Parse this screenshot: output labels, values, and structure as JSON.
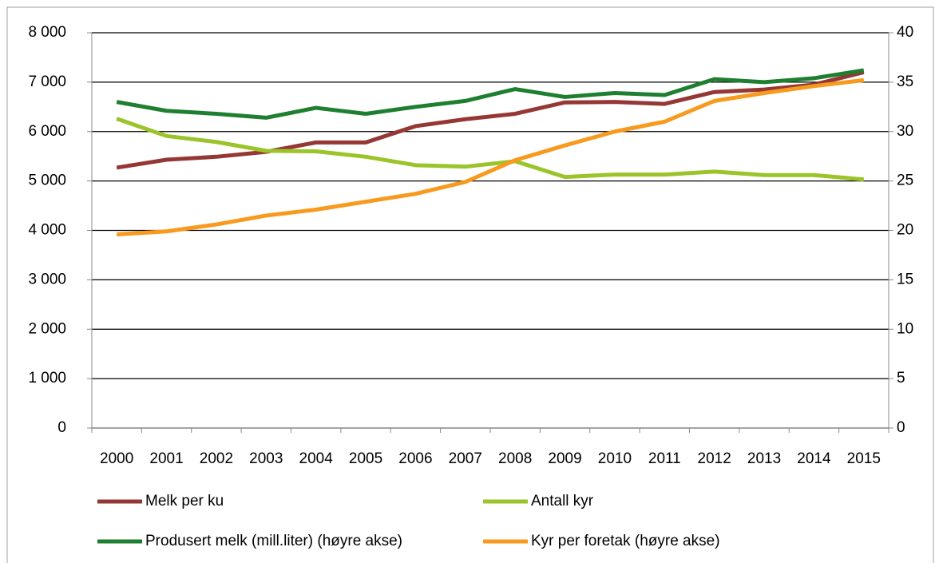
{
  "chart_data": {
    "type": "line",
    "categories": [
      "2000",
      "2001",
      "2002",
      "2003",
      "2004",
      "2005",
      "2006",
      "2007",
      "2008",
      "2009",
      "2010",
      "2011",
      "2012",
      "2013",
      "2014",
      "2015"
    ],
    "ylim": [
      0,
      8000
    ],
    "yticks": [
      {
        "value": 0,
        "label": "0"
      },
      {
        "value": 1000,
        "label": "1 000"
      },
      {
        "value": 2000,
        "label": "2 000"
      },
      {
        "value": 3000,
        "label": "3 000"
      },
      {
        "value": 4000,
        "label": "4 000"
      },
      {
        "value": 5000,
        "label": "5 000"
      },
      {
        "value": 6000,
        "label": "6 000"
      },
      {
        "value": 7000,
        "label": "7 000"
      },
      {
        "value": 8000,
        "label": "8 000"
      }
    ],
    "y2lim": [
      0,
      40
    ],
    "y2ticks": [
      0,
      5,
      10,
      15,
      20,
      25,
      30,
      35,
      40
    ],
    "grid": true,
    "legend": "bottom",
    "series": [
      {
        "name": "Melk per ku",
        "color": "#953735",
        "values": [
          5270,
          5430,
          5490,
          5590,
          5780,
          5780,
          6110,
          6250,
          6360,
          6590,
          6600,
          6560,
          6800,
          6850,
          6950,
          7200
        ]
      },
      {
        "name": "Antall kyr",
        "color": "#9bc42a",
        "values": [
          6260,
          5910,
          5790,
          5610,
          5600,
          5490,
          5320,
          5290,
          5400,
          5080,
          5130,
          5130,
          5190,
          5120,
          5120,
          5030
        ]
      },
      {
        "name": "Produsert melk (mill.liter) (høyre akse)",
        "color": "#1f7f30",
        "axis": "y2",
        "values": [
          33.0,
          32.1,
          31.8,
          31.4,
          32.4,
          31.8,
          32.5,
          33.1,
          34.3,
          33.5,
          33.9,
          33.7,
          35.3,
          35.0,
          35.4,
          36.2
        ]
      },
      {
        "name": "Kyr per foretak (høyre akse)",
        "color": "#f79a1e",
        "axis": "y2",
        "values": [
          19.6,
          19.9,
          20.6,
          21.5,
          22.1,
          22.9,
          23.7,
          24.9,
          27.1,
          28.6,
          30.0,
          31.0,
          33.1,
          33.9,
          34.6,
          35.2
        ]
      }
    ]
  }
}
